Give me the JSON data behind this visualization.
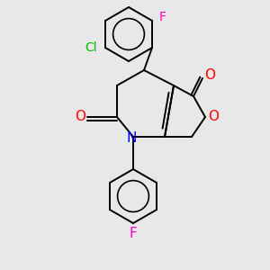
{
  "background_color": "#e8e8e8",
  "bond_color": "#000000",
  "atom_colors": {
    "O": "#ff0000",
    "N": "#0000ff",
    "F_top": "#ff00cc",
    "Cl": "#00bb00",
    "F_bottom": "#ff00cc"
  },
  "figsize": [
    3.0,
    3.0
  ],
  "dpi": 100,
  "lw": 1.4
}
